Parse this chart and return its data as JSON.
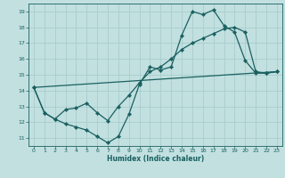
{
  "xlabel": "Humidex (Indice chaleur)",
  "xlim": [
    -0.5,
    23.5
  ],
  "ylim": [
    10.5,
    19.5
  ],
  "bg_color": "#c2e0e0",
  "grid_color": "#a8cccc",
  "line_color": "#1a6060",
  "line1_x": [
    0,
    1,
    2,
    3,
    4,
    5,
    6,
    7,
    8,
    9,
    10,
    11,
    12,
    13,
    14,
    15,
    16,
    17,
    18,
    19,
    20,
    21,
    22,
    23
  ],
  "line1_y": [
    14.2,
    12.6,
    12.2,
    11.9,
    11.7,
    11.5,
    11.1,
    10.7,
    11.1,
    12.5,
    14.4,
    15.5,
    15.3,
    15.5,
    17.5,
    19.0,
    18.8,
    19.1,
    18.1,
    17.7,
    15.9,
    15.1,
    15.1,
    15.2
  ],
  "line2_x": [
    0,
    1,
    2,
    3,
    4,
    5,
    6,
    7,
    8,
    9,
    10,
    11,
    12,
    13,
    14,
    15,
    16,
    17,
    18,
    19,
    20,
    21,
    22,
    23
  ],
  "line2_y": [
    14.2,
    12.6,
    12.2,
    12.8,
    12.9,
    13.2,
    12.6,
    12.1,
    13.0,
    13.7,
    14.5,
    15.2,
    15.5,
    16.0,
    16.6,
    17.0,
    17.3,
    17.6,
    17.9,
    18.0,
    17.7,
    15.2,
    15.1,
    15.2
  ],
  "line3_x": [
    0,
    23
  ],
  "line3_y": [
    14.2,
    15.2
  ],
  "xticks": [
    0,
    1,
    2,
    3,
    4,
    5,
    6,
    7,
    8,
    9,
    10,
    11,
    12,
    13,
    14,
    15,
    16,
    17,
    18,
    19,
    20,
    21,
    22,
    23
  ],
  "yticks": [
    11,
    12,
    13,
    14,
    15,
    16,
    17,
    18,
    19
  ],
  "marker_size": 2.2,
  "lw": 0.9
}
